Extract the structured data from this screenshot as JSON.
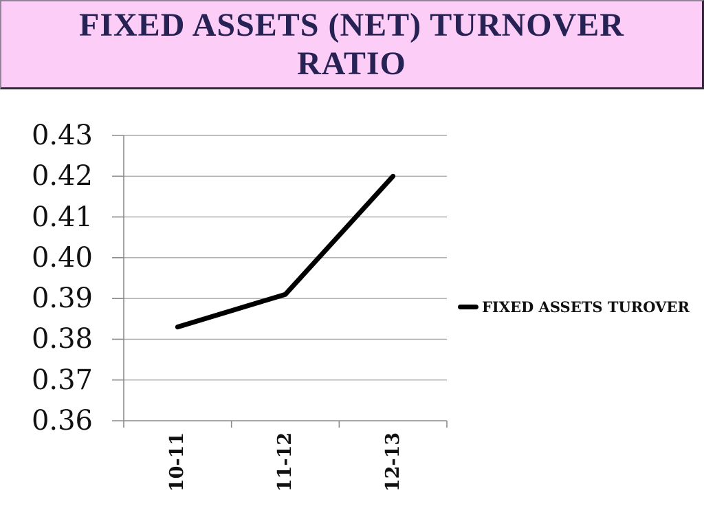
{
  "title": {
    "line1": "FIXED ASSETS (NET) TURNOVER",
    "line2": "RATIO"
  },
  "colors": {
    "banner_bg": "#fccdf6",
    "banner_border_dark": "#2f2838",
    "title_text": "#262254",
    "gridline": "#a8a8a8",
    "axis": "#8c8c8c",
    "series_line": "#000000"
  },
  "chart_data": {
    "type": "line",
    "categories": [
      "10-11",
      "11-12",
      "12-13"
    ],
    "series": [
      {
        "name": "FIXED ASSETS TUROVER",
        "values": [
          0.383,
          0.391,
          0.42
        ]
      }
    ],
    "yticks": [
      "0.36",
      "0.37",
      "0.38",
      "0.39",
      "0.40",
      "0.41",
      "0.42",
      "0.43"
    ],
    "ylim": [
      0.36,
      0.43
    ],
    "title": "FIXED ASSETS (NET) TURNOVER RATIO",
    "xlabel": "",
    "ylabel": "",
    "grid": "horizontal",
    "legend": {
      "label": "FIXED ASSETS TUROVER",
      "position": "right"
    }
  }
}
